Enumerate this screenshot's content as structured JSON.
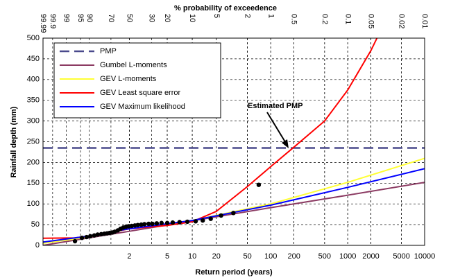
{
  "chart_data": {
    "type": "line",
    "xscale": "gumbel",
    "xlabel": "Return period (years)",
    "ylabel": "Rainfall depth (mm)",
    "x2label": "% probability of exceedence",
    "annotation": "Estimated PMP",
    "xlim": [
      1.0001,
      10000
    ],
    "ylim": [
      0,
      500
    ],
    "xticks": [
      2,
      5,
      10,
      20,
      50,
      100,
      200,
      500,
      1000,
      2000,
      5000,
      10000
    ],
    "x2ticks": [
      99.99,
      99.9,
      99,
      95,
      90,
      70,
      50,
      30,
      20,
      10,
      5,
      2,
      1,
      0.5,
      0.2,
      0.1,
      0.05,
      0.02,
      0.01
    ],
    "yticks": [
      0,
      50,
      100,
      150,
      200,
      250,
      300,
      350,
      400,
      450,
      500
    ],
    "grid": true,
    "legend": "upper left",
    "series": [
      {
        "name": "PMP",
        "color": "#4a4a8c",
        "dash": "dashed",
        "x": [
          1.0001,
          10000
        ],
        "values": [
          235,
          235
        ]
      },
      {
        "name": "Gumbel L-moments",
        "color": "#8b3a62",
        "dash": "solid",
        "x": [
          1.0001,
          2,
          10,
          100,
          1000,
          10000
        ],
        "values": [
          0,
          34,
          59,
          91,
          121,
          152
        ]
      },
      {
        "name": "GEV L-moments",
        "color": "#ffff33",
        "dash": "solid",
        "x": [
          1.0001,
          1.1,
          1.5,
          2,
          10,
          100,
          1000,
          10000
        ],
        "values": [
          5,
          20,
          33,
          40,
          60,
          100,
          152,
          210
        ]
      },
      {
        "name": "GEV Least square error",
        "color": "#ff0000",
        "dash": "solid",
        "x": [
          1.0001,
          1.03,
          1.1,
          1.5,
          2,
          5,
          10,
          20,
          50,
          100,
          200,
          500,
          1000,
          2000,
          2400
        ],
        "values": [
          17,
          18,
          22,
          33,
          40,
          48,
          57,
          82,
          142,
          190,
          237,
          300,
          375,
          470,
          500
        ]
      },
      {
        "name": "GEV Maximum likelihood",
        "color": "#0000ff",
        "dash": "solid",
        "x": [
          1.0001,
          1.1,
          1.5,
          2,
          10,
          100,
          1000,
          10000
        ],
        "values": [
          8,
          22,
          34,
          40,
          60,
          97,
          140,
          185
        ]
      }
    ],
    "scatter": {
      "color": "#000000",
      "x": [
        1.03,
        1.06,
        1.09,
        1.12,
        1.16,
        1.2,
        1.25,
        1.3,
        1.35,
        1.4,
        1.46,
        1.52,
        1.6,
        1.68,
        1.77,
        1.87,
        1.98,
        2.1,
        2.25,
        2.4,
        2.6,
        2.8,
        3.1,
        3.4,
        3.8,
        4.3,
        5,
        5.8,
        7,
        8.7,
        11,
        13.5,
        17,
        23,
        33,
        70
      ],
      "values": [
        10,
        18,
        20,
        22,
        24,
        26,
        27,
        28,
        29,
        30,
        31,
        33,
        36,
        40,
        43,
        45,
        46,
        47,
        48,
        49,
        50,
        51,
        52,
        52,
        53,
        54,
        54,
        55,
        56,
        57,
        58,
        60,
        64,
        72,
        78,
        146
      ]
    }
  }
}
